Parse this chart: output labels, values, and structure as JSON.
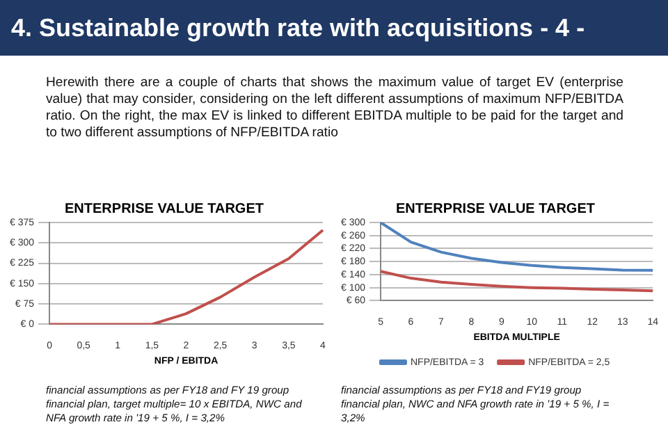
{
  "chart_data": [
    {
      "type": "line",
      "title": "ENTERPRISE VALUE TARGET",
      "xlabel": "NFP / EBITDA",
      "annotations": [
        "4. Sustainable growth rate with acquisitions  - 4 -",
        "Herewith there are a couple of charts that shows the maximum value of target EV (enterprise value) that may consider, considering on the left different assumptions of maximum NFP/EBITDA ratio. On the right, the max EV is linked to different EBITDA multiple to be paid for the target and to two different assumptions of NFP/EBITDA ratio",
        "financial assumptions as per FY18 and FY 19 group financial plan, target multiple= 10 x EBITDA, NWC and NFA growth rate in '19 + 5 %, I = 3,2%"
      ],
      "categories": [
        "0",
        "0,5",
        "1",
        "1,5",
        "2",
        "2,5",
        "3",
        "3,5",
        "4"
      ],
      "series": [
        {
          "color": "#c0504d",
          "values": [
            0,
            0,
            0,
            0,
            39,
            100,
            174,
            242,
            347
          ]
        }
      ],
      "ylim": [
        0,
        375
      ],
      "yticks": [
        {
          "value": 0,
          "label": "€ 0"
        },
        {
          "value": 75,
          "label": "€ 75"
        },
        {
          "value": 150,
          "label": "€ 150"
        },
        {
          "value": 225,
          "label": "€ 225"
        },
        {
          "value": 300,
          "label": "€ 300"
        },
        {
          "value": 375,
          "label": "€ 375"
        }
      ],
      "grid": "y",
      "legend": false,
      "marker": "none"
    },
    {
      "type": "line",
      "title": "ENTERPRISE VALUE TARGET",
      "xlabel": "EBITDA MULTIPLE",
      "annotations": [
        "financial assumptions as per FY18 and FY19 group financial plan, NWC and NFA growth rate in '19 + 5 %, I = 3,2%"
      ],
      "categories": [
        "5",
        "6",
        "7",
        "8",
        "9",
        "10",
        "11",
        "12",
        "13",
        "14"
      ],
      "series": [
        {
          "name": "NFP/EBITDA = 3",
          "color": "#4f81bd",
          "values": [
            300,
            240,
            209,
            190,
            177,
            168,
            162,
            158,
            154,
            153
          ]
        },
        {
          "name": "NFP/EBITDA = 2,5",
          "color": "#c0504d",
          "values": [
            150,
            129,
            117,
            110,
            104,
            100,
            98,
            95,
            93,
            90
          ]
        }
      ],
      "ylim": [
        60,
        300
      ],
      "yticks": [
        {
          "value": 60,
          "label": "€ 60"
        },
        {
          "value": 100,
          "label": "€ 100"
        },
        {
          "value": 140,
          "label": "€ 140"
        },
        {
          "value": 180,
          "label": "€ 180"
        },
        {
          "value": 220,
          "label": "€ 220"
        },
        {
          "value": 260,
          "label": "€ 260"
        },
        {
          "value": 300,
          "label": "€ 300"
        }
      ],
      "grid": "y",
      "legend": "bottom",
      "marker": "none"
    }
  ]
}
